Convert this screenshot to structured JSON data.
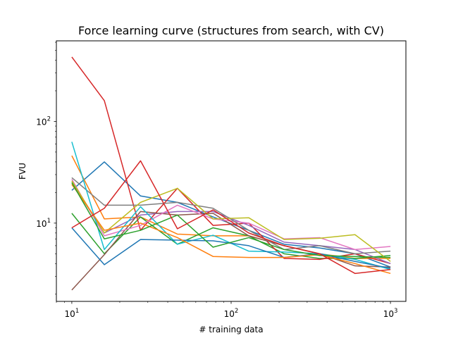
{
  "chart_data": {
    "type": "line",
    "title": "Force learning curve (structures from search, with CV)",
    "xlabel": "# training data",
    "ylabel": "FVU",
    "xscale": "log",
    "yscale": "log",
    "xlim": [
      8.0,
      1250.0
    ],
    "ylim": [
      1.7,
      620.0
    ],
    "grid": false,
    "x": [
      10,
      16,
      27,
      46,
      77,
      129,
      215,
      359,
      599,
      1000
    ],
    "x_ticks": [
      {
        "value": 10,
        "base": "10",
        "exp": "1"
      },
      {
        "value": 100,
        "base": "10",
        "exp": "2"
      },
      {
        "value": 1000,
        "base": "10",
        "exp": "3"
      }
    ],
    "y_ticks": [
      {
        "value": 10,
        "base": "10",
        "exp": "1"
      },
      {
        "value": 100,
        "base": "10",
        "exp": "2"
      }
    ],
    "series": [
      {
        "color": "#1f77b4",
        "values": [
          21.0,
          40.0,
          18.5,
          16.0,
          11.5,
          8.5,
          6.2,
          5.7,
          5.0,
          3.7
        ]
      },
      {
        "color": "#ff7f0e",
        "values": [
          46.0,
          11.0,
          11.5,
          7.8,
          7.5,
          7.5,
          6.0,
          5.0,
          4.5,
          4.5
        ]
      },
      {
        "color": "#2ca02c",
        "values": [
          12.5,
          5.0,
          11.5,
          6.2,
          9.0,
          7.5,
          5.0,
          4.5,
          4.5,
          4.8
        ]
      },
      {
        "color": "#d62728",
        "values": [
          430.0,
          160.0,
          8.5,
          22.0,
          9.5,
          10.0,
          4.5,
          4.4,
          5.0,
          4.0
        ]
      },
      {
        "color": "#9467bd",
        "values": [
          25.0,
          8.0,
          12.0,
          13.0,
          13.0,
          9.5,
          6.5,
          6.0,
          5.5,
          4.0
        ]
      },
      {
        "color": "#8c564b",
        "values": [
          2.2,
          4.9,
          13.0,
          12.0,
          12.5,
          7.5,
          6.0,
          5.0,
          3.8,
          3.7
        ]
      },
      {
        "color": "#e377c2",
        "values": [
          27.0,
          7.5,
          9.5,
          15.0,
          11.0,
          10.0,
          7.0,
          7.2,
          5.5,
          5.9
        ]
      },
      {
        "color": "#7f7f7f",
        "values": [
          28.0,
          15.0,
          15.0,
          16.0,
          14.0,
          8.5,
          5.5,
          6.0,
          5.0,
          5.3
        ]
      },
      {
        "color": "#bcbd22",
        "values": [
          26.0,
          8.0,
          16.0,
          22.0,
          11.0,
          11.3,
          6.9,
          7.1,
          7.7,
          4.2
        ]
      },
      {
        "color": "#17becf",
        "values": [
          63.0,
          5.5,
          14.5,
          6.2,
          7.6,
          5.3,
          5.2,
          5.0,
          4.4,
          3.5
        ]
      },
      {
        "color": "#1f77b4",
        "values": [
          9.0,
          3.9,
          6.9,
          6.8,
          6.7,
          6.0,
          4.6,
          5.0,
          4.2,
          3.6
        ]
      },
      {
        "color": "#ff7f0e",
        "values": [
          24.0,
          8.5,
          10.0,
          7.2,
          4.7,
          4.6,
          4.6,
          4.9,
          4.0,
          3.2
        ]
      },
      {
        "color": "#2ca02c",
        "values": [
          25.0,
          7.0,
          8.5,
          12.0,
          5.8,
          7.2,
          5.5,
          4.8,
          4.7,
          4.6
        ]
      },
      {
        "color": "#d62728",
        "values": [
          9.0,
          14.0,
          41.0,
          8.8,
          13.5,
          8.0,
          6.0,
          5.0,
          3.2,
          3.5
        ]
      }
    ]
  }
}
